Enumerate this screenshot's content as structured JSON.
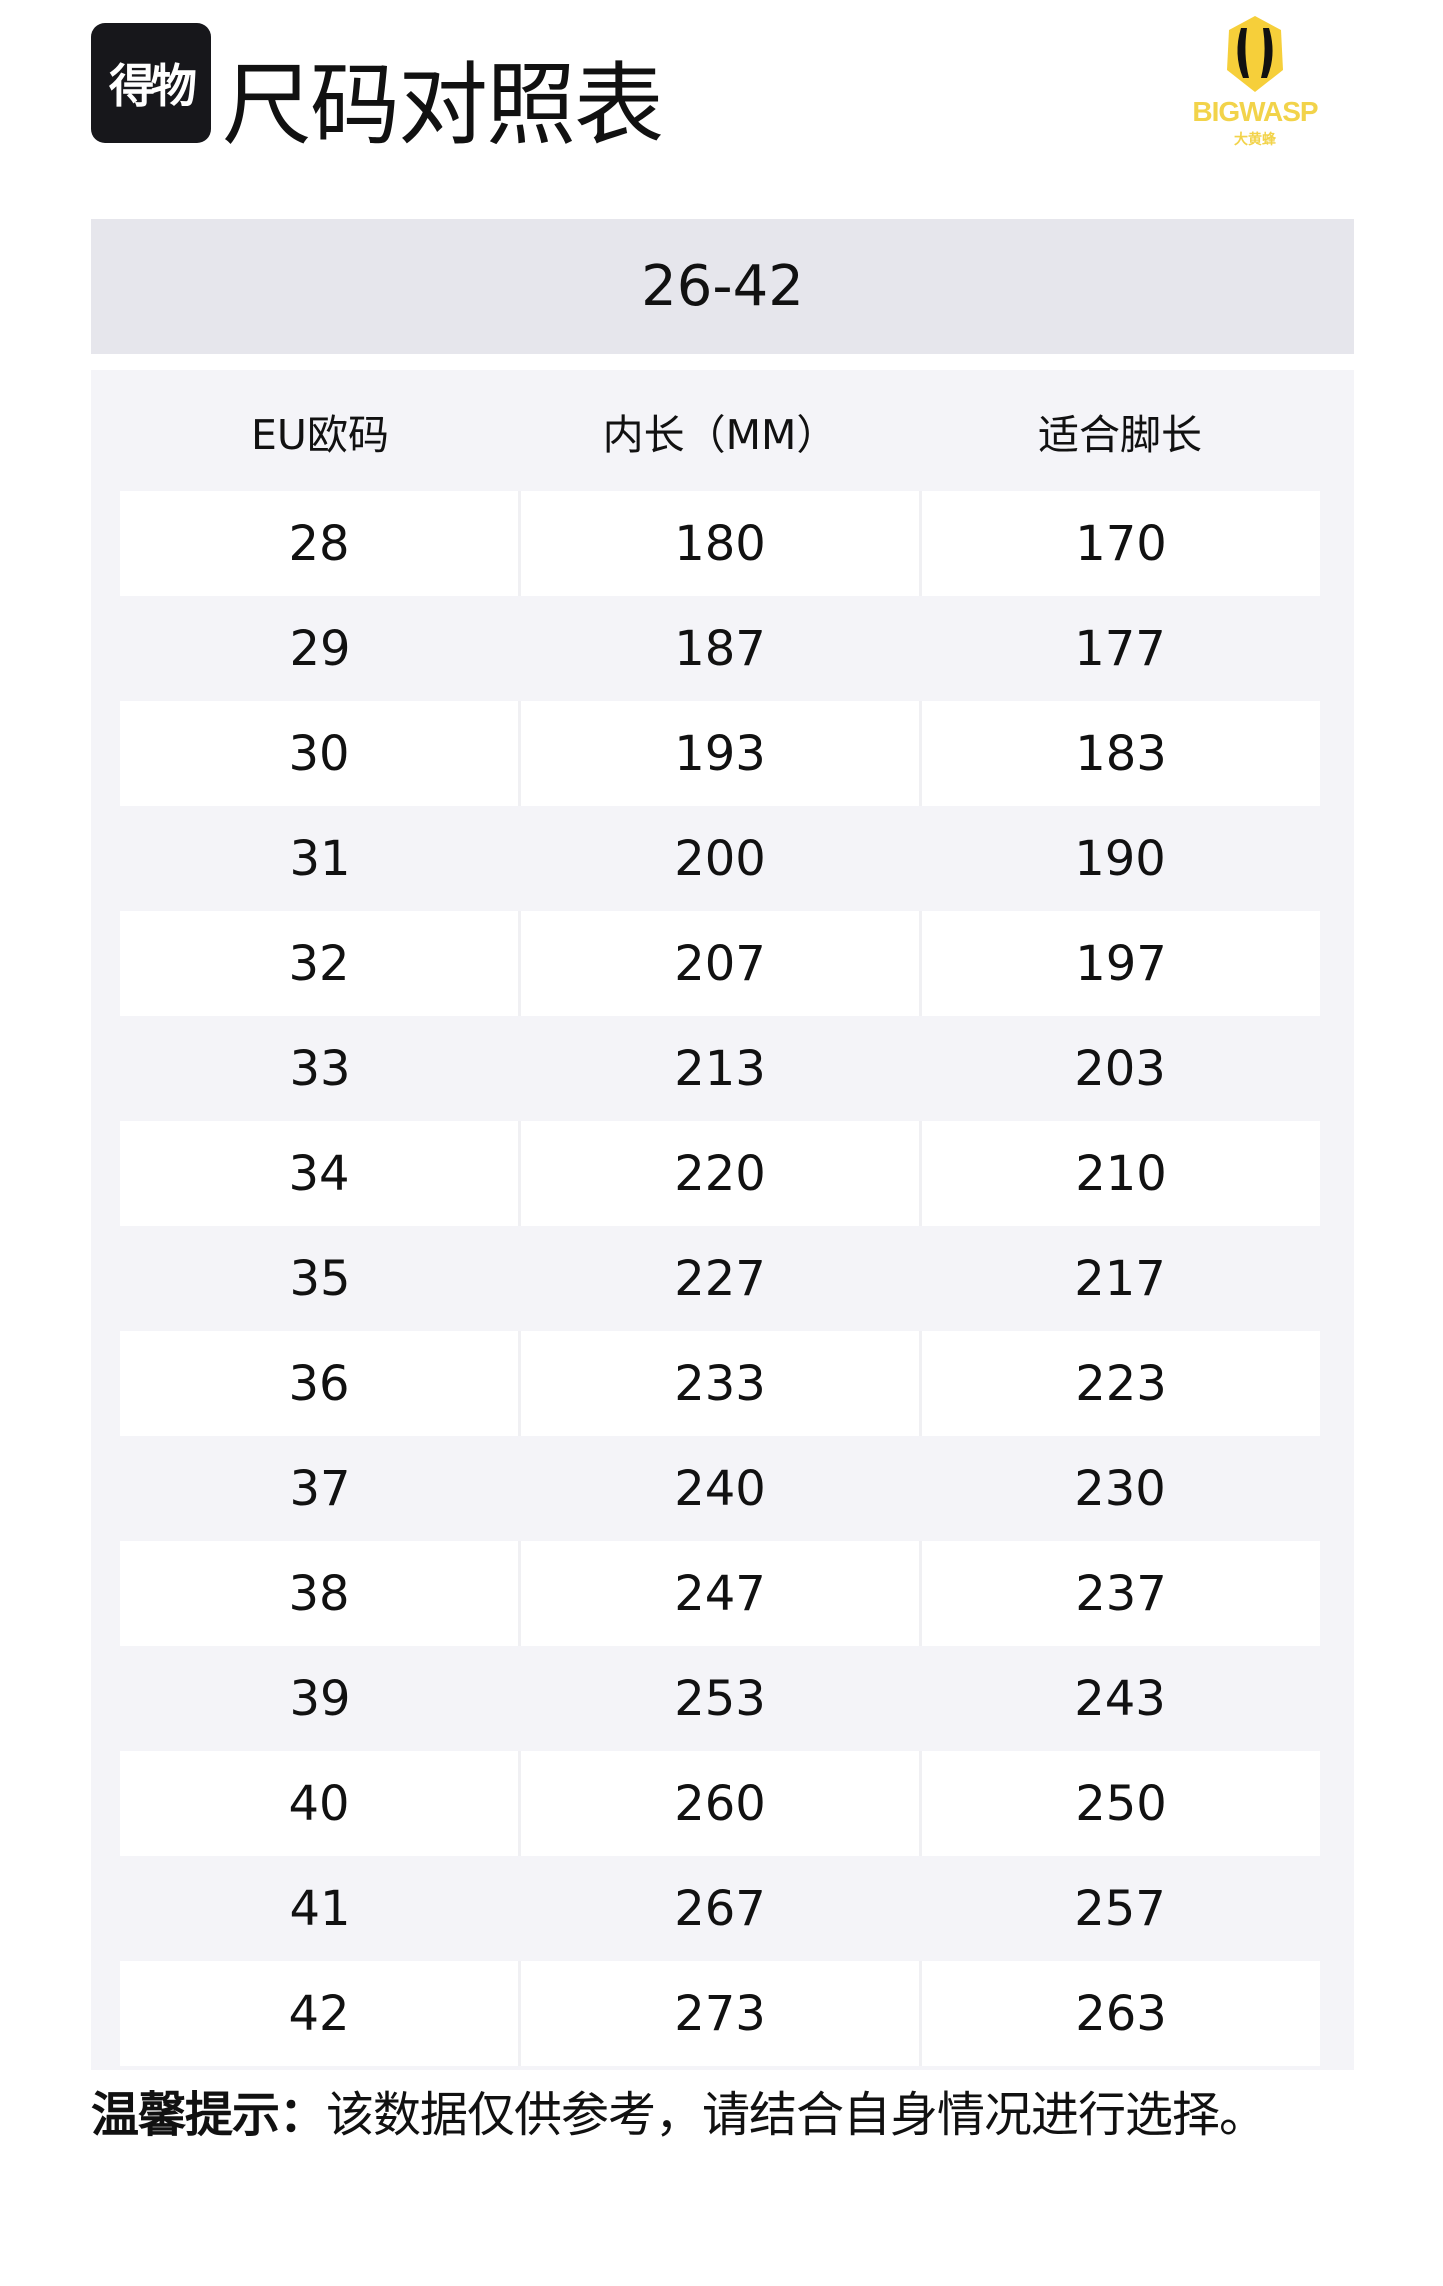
{
  "header": {
    "app_logo_text": "得物",
    "title": "尺码对照表",
    "brand_logo": {
      "name": "BIGWASP",
      "sub": "大黄蜂",
      "color": "#f2d34a"
    }
  },
  "range_label": "26-42",
  "table": {
    "columns": [
      "EU欧码",
      "内长（MM）",
      "适合脚长"
    ],
    "rows": [
      [
        "28",
        "180",
        "170"
      ],
      [
        "29",
        "187",
        "177"
      ],
      [
        "30",
        "193",
        "183"
      ],
      [
        "31",
        "200",
        "190"
      ],
      [
        "32",
        "207",
        "197"
      ],
      [
        "33",
        "213",
        "203"
      ],
      [
        "34",
        "220",
        "210"
      ],
      [
        "35",
        "227",
        "217"
      ],
      [
        "36",
        "233",
        "223"
      ],
      [
        "37",
        "240",
        "230"
      ],
      [
        "38",
        "247",
        "237"
      ],
      [
        "39",
        "253",
        "243"
      ],
      [
        "40",
        "260",
        "250"
      ],
      [
        "41",
        "267",
        "257"
      ],
      [
        "42",
        "273",
        "263"
      ]
    ]
  },
  "note": {
    "label": "温馨提示：",
    "text": "该数据仅供参考，请结合自身情况进行选择。"
  }
}
